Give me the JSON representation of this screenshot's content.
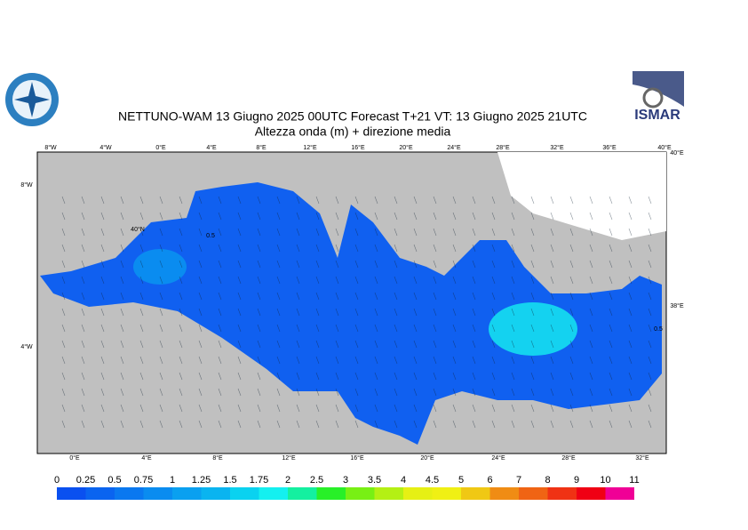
{
  "title": "NETTUNO-WAM  13   Giugno  2025 00UTC Forecast T+21 VT: 13   Giugno  2025 21UTC",
  "subtitle": "Altezza onda (m) + direzione media",
  "logo_text": "ISMAR",
  "top_labels": [
    "8°W",
    "4°W",
    "0°E",
    "4°E",
    "8°E",
    "12°E",
    "16°E",
    "20°E",
    "24°E",
    "28°E",
    "32°E",
    "36°E",
    "40°E"
  ],
  "bottom_labels": [
    "0°E",
    "4°E",
    "8°E",
    "12°E",
    "16°E",
    "20°E",
    "24°E",
    "28°E",
    "32°E"
  ],
  "left_labels": [
    "8°W",
    "40°N",
    "4°W"
  ],
  "right_labels": [
    "40°E",
    "38°E"
  ],
  "contour_labels": [
    "0.5",
    "0.5"
  ],
  "colorbar": {
    "labels": [
      "0",
      "0.25",
      "0.5",
      "0.75",
      "1",
      "1.25",
      "1.5",
      "1.75",
      "2",
      "2.5",
      "3",
      "3.5",
      "4",
      "4.5",
      "5",
      "6",
      "7",
      "8",
      "9",
      "10",
      "11"
    ],
    "colors": [
      "#0a50f0",
      "#0a64f0",
      "#0a78f0",
      "#0a8cf0",
      "#0aa0f0",
      "#0ab4f0",
      "#0ad2f0",
      "#14f0f0",
      "#14f0a0",
      "#28f028",
      "#78f014",
      "#b4f014",
      "#e6f014",
      "#f0f014",
      "#f0c814",
      "#f08c14",
      "#f06414",
      "#f03214",
      "#f00014",
      "#f00096"
    ]
  }
}
